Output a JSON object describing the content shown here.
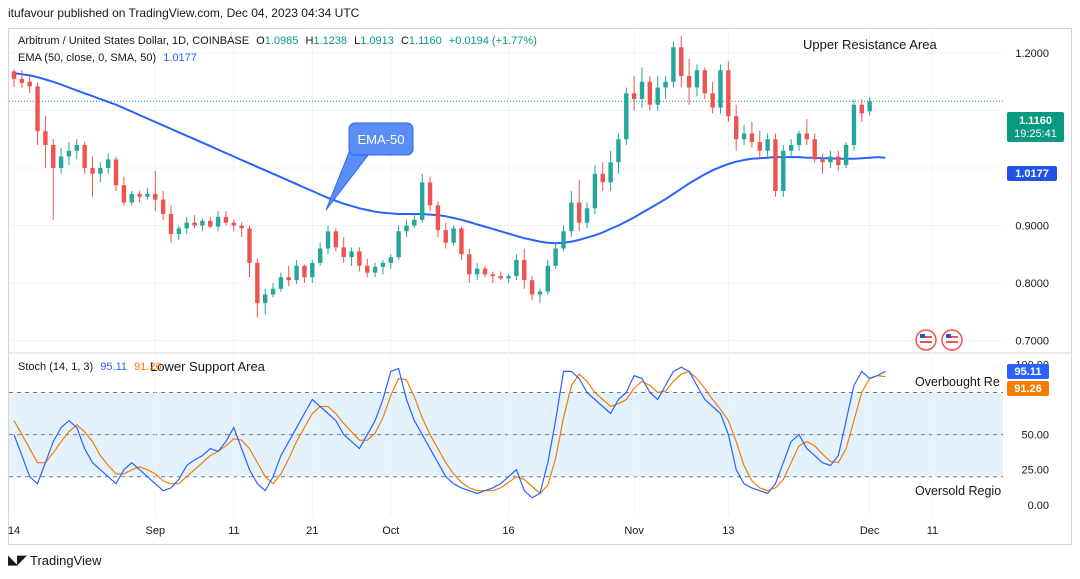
{
  "header": "itufavour published on TradingView.com, Dec 04, 2023 04:34 UTC",
  "price_legend": {
    "symbol": "Arbitrum / United States Dollar, 1D, COINBASE",
    "o_label": "O",
    "o": "1.0985",
    "h_label": "H",
    "h": "1.1238",
    "l_label": "L",
    "l": "1.0913",
    "c_label": "C",
    "c": "1.1160",
    "change": "+0.0194 (+1.77%)"
  },
  "ema_legend": {
    "label": "EMA (50, close, 0, SMA, 50)",
    "value": "1.0177"
  },
  "stoch_legend": {
    "label": "Stoch (14, 1, 3)",
    "k": "95.11",
    "d": "91.26"
  },
  "annotations": {
    "upper": "Upper Resistance Area",
    "lower": "Lower Support Area",
    "ema": "EMA-50",
    "overbought": "Overbought Re",
    "oversold": "Oversold Regio"
  },
  "badges": {
    "price": "1.1160",
    "countdown": "19:25:41",
    "ema": "1.0177",
    "k": "95.11",
    "d": "91.26"
  },
  "footer": {
    "brand": "TradingView"
  },
  "colors": {
    "up": "#26a69a",
    "down": "#ef5350",
    "ema": "#2962ff",
    "stoch_k": "#2962ff",
    "stoch_d": "#f57c00",
    "band": "#e3f2fd",
    "badge_price": "#089981",
    "badge_ema": "#1e53e5"
  },
  "chart_data": [
    {
      "type": "candlestick",
      "series_name": "ARB/USD 1D",
      "y_ticks": [
        0.7,
        0.8,
        0.9,
        1.0,
        1.1,
        1.2
      ],
      "y_tick_labels": [
        "0.7000",
        "0.8000",
        "0.9000",
        "",
        "",
        "1.2000"
      ],
      "x_tick_labels": [
        {
          "label": "14",
          "index": 0
        },
        {
          "label": "Sep",
          "index": 18
        },
        {
          "label": "11",
          "index": 28
        },
        {
          "label": "21",
          "index": 38
        },
        {
          "label": "Oct",
          "index": 48
        },
        {
          "label": "16",
          "index": 63
        },
        {
          "label": "Nov",
          "index": 79
        },
        {
          "label": "13",
          "index": 91
        },
        {
          "label": "Dec",
          "index": 109
        },
        {
          "label": "11",
          "index": 117
        }
      ],
      "ylim": [
        0.68,
        1.24
      ],
      "last_price": 1.116,
      "candles": [
        [
          1.168,
          1.172,
          1.141,
          1.155
        ],
        [
          1.155,
          1.17,
          1.14,
          1.148
        ],
        [
          1.15,
          1.162,
          1.13,
          1.142
        ],
        [
          1.142,
          1.148,
          1.04,
          1.064
        ],
        [
          1.064,
          1.09,
          1.0,
          1.04
        ],
        [
          1.04,
          1.05,
          0.91,
          1.0
        ],
        [
          1.0,
          1.035,
          0.99,
          1.02
        ],
        [
          1.02,
          1.045,
          1.005,
          1.03
        ],
        [
          1.03,
          1.05,
          1.015,
          1.04
        ],
        [
          1.04,
          1.045,
          0.99,
          1.0
        ],
        [
          1.0,
          1.02,
          0.95,
          0.99
        ],
        [
          0.99,
          1.01,
          0.975,
          1.0
        ],
        [
          1.0,
          1.025,
          0.99,
          1.015
        ],
        [
          1.015,
          1.02,
          0.96,
          0.97
        ],
        [
          0.97,
          0.985,
          0.935,
          0.94
        ],
        [
          0.94,
          0.96,
          0.935,
          0.955
        ],
        [
          0.955,
          0.96,
          0.94,
          0.95
        ],
        [
          0.95,
          0.965,
          0.945,
          0.955
        ],
        [
          0.955,
          0.995,
          0.925,
          0.945
        ],
        [
          0.945,
          0.96,
          0.91,
          0.92
        ],
        [
          0.92,
          0.935,
          0.87,
          0.885
        ],
        [
          0.885,
          0.9,
          0.875,
          0.895
        ],
        [
          0.895,
          0.915,
          0.885,
          0.905
        ],
        [
          0.905,
          0.918,
          0.895,
          0.9
        ],
        [
          0.9,
          0.912,
          0.89,
          0.908
        ],
        [
          0.908,
          0.915,
          0.895,
          0.898
        ],
        [
          0.898,
          0.925,
          0.89,
          0.915
        ],
        [
          0.915,
          0.925,
          0.9,
          0.905
        ],
        [
          0.905,
          0.91,
          0.89,
          0.9
        ],
        [
          0.9,
          0.905,
          0.88,
          0.895
        ],
        [
          0.895,
          0.9,
          0.81,
          0.835
        ],
        [
          0.835,
          0.842,
          0.74,
          0.765
        ],
        [
          0.765,
          0.79,
          0.745,
          0.78
        ],
        [
          0.78,
          0.8,
          0.775,
          0.79
        ],
        [
          0.79,
          0.818,
          0.785,
          0.81
        ],
        [
          0.81,
          0.83,
          0.795,
          0.805
        ],
        [
          0.805,
          0.84,
          0.798,
          0.83
        ],
        [
          0.83,
          0.832,
          0.8,
          0.81
        ],
        [
          0.81,
          0.84,
          0.8,
          0.835
        ],
        [
          0.835,
          0.87,
          0.83,
          0.86
        ],
        [
          0.86,
          0.9,
          0.85,
          0.89
        ],
        [
          0.89,
          0.895,
          0.855,
          0.862
        ],
        [
          0.862,
          0.88,
          0.835,
          0.845
        ],
        [
          0.845,
          0.862,
          0.83,
          0.855
        ],
        [
          0.855,
          0.862,
          0.82,
          0.83
        ],
        [
          0.83,
          0.842,
          0.81,
          0.818
        ],
        [
          0.818,
          0.835,
          0.81,
          0.828
        ],
        [
          0.828,
          0.84,
          0.815,
          0.835
        ],
        [
          0.835,
          0.85,
          0.825,
          0.845
        ],
        [
          0.845,
          0.9,
          0.84,
          0.89
        ],
        [
          0.89,
          0.91,
          0.88,
          0.9
        ],
        [
          0.9,
          0.92,
          0.895,
          0.91
        ],
        [
          0.91,
          0.99,
          0.905,
          0.975
        ],
        [
          0.975,
          0.985,
          0.925,
          0.935
        ],
        [
          0.935,
          0.942,
          0.88,
          0.892
        ],
        [
          0.892,
          0.905,
          0.86,
          0.87
        ],
        [
          0.87,
          0.9,
          0.865,
          0.895
        ],
        [
          0.895,
          0.898,
          0.84,
          0.85
        ],
        [
          0.85,
          0.86,
          0.8,
          0.815
        ],
        [
          0.815,
          0.835,
          0.805,
          0.825
        ],
        [
          0.825,
          0.83,
          0.81,
          0.815
        ],
        [
          0.815,
          0.82,
          0.8,
          0.812
        ],
        [
          0.812,
          0.82,
          0.805,
          0.808
        ],
        [
          0.808,
          0.815,
          0.8,
          0.812
        ],
        [
          0.812,
          0.85,
          0.805,
          0.84
        ],
        [
          0.84,
          0.86,
          0.79,
          0.805
        ],
        [
          0.805,
          0.812,
          0.77,
          0.78
        ],
        [
          0.78,
          0.79,
          0.765,
          0.785
        ],
        [
          0.785,
          0.84,
          0.78,
          0.83
        ],
        [
          0.83,
          0.87,
          0.825,
          0.86
        ],
        [
          0.86,
          0.9,
          0.855,
          0.89
        ],
        [
          0.89,
          0.96,
          0.88,
          0.94
        ],
        [
          0.94,
          0.98,
          0.89,
          0.905
        ],
        [
          0.905,
          0.94,
          0.895,
          0.93
        ],
        [
          0.93,
          1.005,
          0.92,
          0.99
        ],
        [
          0.99,
          1.01,
          0.96,
          0.975
        ],
        [
          0.975,
          1.03,
          0.96,
          1.01
        ],
        [
          1.01,
          1.06,
          0.99,
          1.05
        ],
        [
          1.05,
          1.14,
          1.04,
          1.13
        ],
        [
          1.13,
          1.16,
          1.1,
          1.12
        ],
        [
          1.12,
          1.175,
          1.105,
          1.15
        ],
        [
          1.15,
          1.16,
          1.1,
          1.11
        ],
        [
          1.11,
          1.16,
          1.1,
          1.14
        ],
        [
          1.14,
          1.16,
          1.12,
          1.15
        ],
        [
          1.15,
          1.22,
          1.14,
          1.21
        ],
        [
          1.21,
          1.23,
          1.14,
          1.16
        ],
        [
          1.16,
          1.19,
          1.11,
          1.14
        ],
        [
          1.14,
          1.18,
          1.125,
          1.17
        ],
        [
          1.17,
          1.175,
          1.12,
          1.13
        ],
        [
          1.13,
          1.15,
          1.095,
          1.105
        ],
        [
          1.105,
          1.18,
          1.095,
          1.17
        ],
        [
          1.17,
          1.185,
          1.08,
          1.09
        ],
        [
          1.09,
          1.11,
          1.03,
          1.05
        ],
        [
          1.05,
          1.075,
          1.04,
          1.06
        ],
        [
          1.06,
          1.08,
          1.035,
          1.045
        ],
        [
          1.045,
          1.065,
          1.015,
          1.03
        ],
        [
          1.03,
          1.06,
          1.02,
          1.05
        ],
        [
          1.05,
          1.06,
          0.95,
          0.96
        ],
        [
          0.96,
          1.04,
          0.95,
          1.03
        ],
        [
          1.03,
          1.05,
          1.02,
          1.04
        ],
        [
          1.04,
          1.065,
          1.03,
          1.06
        ],
        [
          1.06,
          1.085,
          1.04,
          1.05
        ],
        [
          1.05,
          1.06,
          1.01,
          1.015
        ],
        [
          1.015,
          1.025,
          0.99,
          1.01
        ],
        [
          1.01,
          1.03,
          1.0,
          1.02
        ],
        [
          1.02,
          1.03,
          0.995,
          1.005
        ],
        [
          1.005,
          1.045,
          1.0,
          1.04
        ],
        [
          1.04,
          1.12,
          1.03,
          1.11
        ],
        [
          1.11,
          1.12,
          1.08,
          1.095
        ],
        [
          1.0985,
          1.1238,
          1.0913,
          1.116
        ]
      ],
      "ema": [
        1.165,
        1.163,
        1.161,
        1.158,
        1.154,
        1.15,
        1.145,
        1.14,
        1.135,
        1.13,
        1.125,
        1.12,
        1.115,
        1.11,
        1.104,
        1.098,
        1.092,
        1.086,
        1.08,
        1.074,
        1.068,
        1.062,
        1.056,
        1.05,
        1.044,
        1.038,
        1.032,
        1.026,
        1.02,
        1.014,
        1.008,
        1.002,
        0.996,
        0.99,
        0.984,
        0.978,
        0.972,
        0.966,
        0.96,
        0.954,
        0.948,
        0.943,
        0.938,
        0.934,
        0.93,
        0.927,
        0.924,
        0.922,
        0.921,
        0.92,
        0.92,
        0.92,
        0.92,
        0.919,
        0.918,
        0.916,
        0.913,
        0.91,
        0.906,
        0.902,
        0.898,
        0.894,
        0.89,
        0.886,
        0.882,
        0.878,
        0.875,
        0.872,
        0.87,
        0.869,
        0.87,
        0.872,
        0.875,
        0.879,
        0.883,
        0.888,
        0.894,
        0.9,
        0.907,
        0.914,
        0.922,
        0.93,
        0.938,
        0.946,
        0.955,
        0.964,
        0.973,
        0.981,
        0.989,
        0.996,
        1.002,
        1.007,
        1.011,
        1.014,
        1.016,
        1.017,
        1.018,
        1.019,
        1.019,
        1.019,
        1.019,
        1.018,
        1.018,
        1.017,
        1.017,
        1.016,
        1.016,
        1.016,
        1.017,
        1.018,
        1.019,
        1.0177
      ]
    },
    {
      "type": "line",
      "series_name": "Stoch (14, 1, 3)",
      "ylim": [
        -8,
        106
      ],
      "y_ticks": [
        0,
        25,
        50,
        75,
        100
      ],
      "y_tick_labels": [
        "0.00",
        "25.00",
        "50.00",
        "",
        "100.00"
      ],
      "levels": [
        20,
        50,
        80
      ],
      "k": [
        50,
        35,
        20,
        15,
        30,
        45,
        55,
        60,
        55,
        40,
        30,
        25,
        20,
        15,
        25,
        30,
        25,
        20,
        15,
        10,
        12,
        18,
        28,
        32,
        35,
        40,
        38,
        45,
        55,
        40,
        25,
        15,
        10,
        20,
        35,
        45,
        55,
        65,
        75,
        70,
        65,
        60,
        50,
        45,
        40,
        50,
        60,
        75,
        95,
        97,
        75,
        60,
        50,
        40,
        30,
        20,
        15,
        12,
        10,
        8,
        10,
        12,
        15,
        20,
        25,
        10,
        5,
        8,
        30,
        60,
        95,
        95,
        90,
        80,
        75,
        70,
        65,
        75,
        80,
        92,
        90,
        80,
        75,
        85,
        95,
        98,
        95,
        85,
        75,
        70,
        65,
        50,
        25,
        15,
        12,
        10,
        8,
        15,
        30,
        45,
        50,
        40,
        35,
        30,
        28,
        35,
        60,
        85,
        95,
        90,
        92,
        95.11
      ],
      "d": [
        60,
        50,
        40,
        30,
        30,
        37,
        45,
        52,
        57,
        52,
        45,
        35,
        28,
        22,
        22,
        25,
        27,
        25,
        22,
        17,
        15,
        15,
        20,
        25,
        30,
        35,
        38,
        42,
        47,
        46,
        40,
        30,
        20,
        15,
        22,
        33,
        45,
        55,
        65,
        70,
        70,
        65,
        58,
        52,
        46,
        46,
        51,
        62,
        78,
        90,
        89,
        77,
        62,
        50,
        40,
        30,
        22,
        16,
        12,
        10,
        10,
        10,
        12,
        16,
        20,
        18,
        13,
        8,
        14,
        33,
        62,
        85,
        93,
        88,
        80,
        75,
        70,
        72,
        75,
        83,
        88,
        85,
        80,
        81,
        88,
        93,
        95,
        90,
        83,
        75,
        68,
        60,
        45,
        28,
        17,
        12,
        10,
        12,
        18,
        30,
        42,
        45,
        42,
        36,
        31,
        30,
        40,
        60,
        80,
        90,
        92,
        91.26
      ]
    }
  ]
}
